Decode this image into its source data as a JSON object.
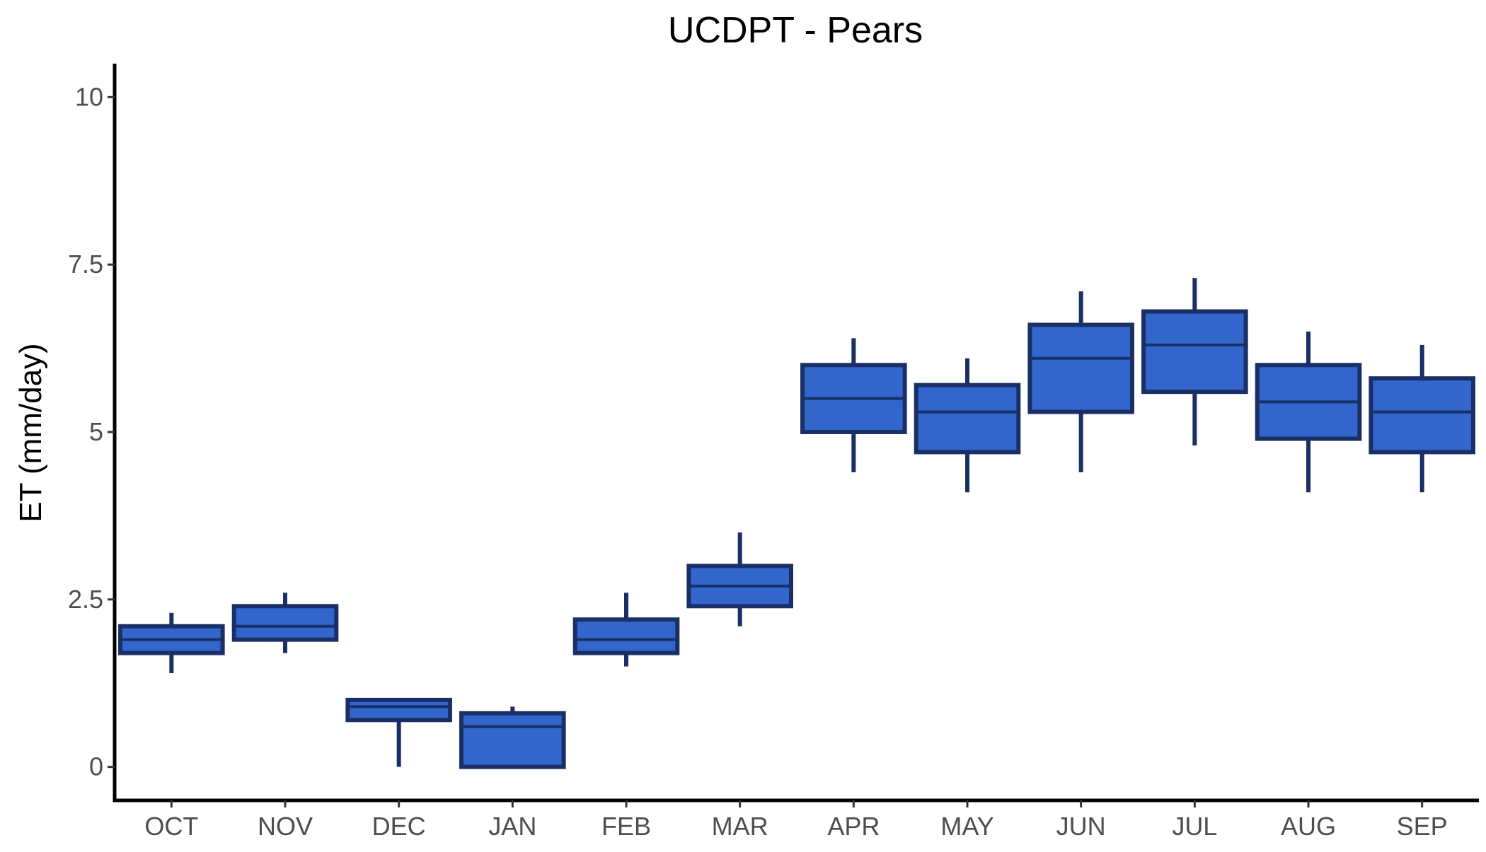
{
  "chart_data": {
    "type": "boxplot",
    "title": "UCDPT - Pears",
    "xlabel": "",
    "ylabel": "ET (mm/day)",
    "ylim": [
      -0.5,
      10.5
    ],
    "y_ticks": [
      0,
      2.5,
      5,
      7.5,
      10
    ],
    "y_tick_labels": [
      "0",
      "2.5",
      "5",
      "7.5",
      "10"
    ],
    "grid": false,
    "categories": [
      "OCT",
      "NOV",
      "DEC",
      "JAN",
      "FEB",
      "MAR",
      "APR",
      "MAY",
      "JUN",
      "JUL",
      "AUG",
      "SEP"
    ],
    "boxes": [
      {
        "label": "OCT",
        "whisker_low": 1.4,
        "q1": 1.7,
        "median": 1.9,
        "q3": 2.1,
        "whisker_high": 2.3
      },
      {
        "label": "NOV",
        "whisker_low": 1.7,
        "q1": 1.9,
        "median": 2.1,
        "q3": 2.4,
        "whisker_high": 2.6
      },
      {
        "label": "DEC",
        "whisker_low": 0.0,
        "q1": 0.7,
        "median": 0.9,
        "q3": 1.0,
        "whisker_high": 1.0
      },
      {
        "label": "JAN",
        "whisker_low": 0.0,
        "q1": 0.0,
        "median": 0.6,
        "q3": 0.8,
        "whisker_high": 0.9
      },
      {
        "label": "FEB",
        "whisker_low": 1.5,
        "q1": 1.7,
        "median": 1.9,
        "q3": 2.2,
        "whisker_high": 2.6
      },
      {
        "label": "MAR",
        "whisker_low": 2.1,
        "q1": 2.4,
        "median": 2.7,
        "q3": 3.0,
        "whisker_high": 3.5
      },
      {
        "label": "APR",
        "whisker_low": 4.4,
        "q1": 5.0,
        "median": 5.5,
        "q3": 6.0,
        "whisker_high": 6.4
      },
      {
        "label": "MAY",
        "whisker_low": 4.1,
        "q1": 4.7,
        "median": 5.3,
        "q3": 5.7,
        "whisker_high": 6.1
      },
      {
        "label": "JUN",
        "whisker_low": 4.4,
        "q1": 5.3,
        "median": 6.1,
        "q3": 6.6,
        "whisker_high": 7.1
      },
      {
        "label": "JUL",
        "whisker_low": 4.8,
        "q1": 5.6,
        "median": 6.3,
        "q3": 6.8,
        "whisker_high": 7.3
      },
      {
        "label": "AUG",
        "whisker_low": 4.1,
        "q1": 4.9,
        "median": 5.45,
        "q3": 6.0,
        "whisker_high": 6.5
      },
      {
        "label": "SEP",
        "whisker_low": 4.1,
        "q1": 4.7,
        "median": 5.3,
        "q3": 5.8,
        "whisker_high": 6.3
      }
    ],
    "colors": {
      "box_fill": "#3366cc",
      "box_outline": "#1a2f66",
      "axis": "#000000"
    }
  }
}
